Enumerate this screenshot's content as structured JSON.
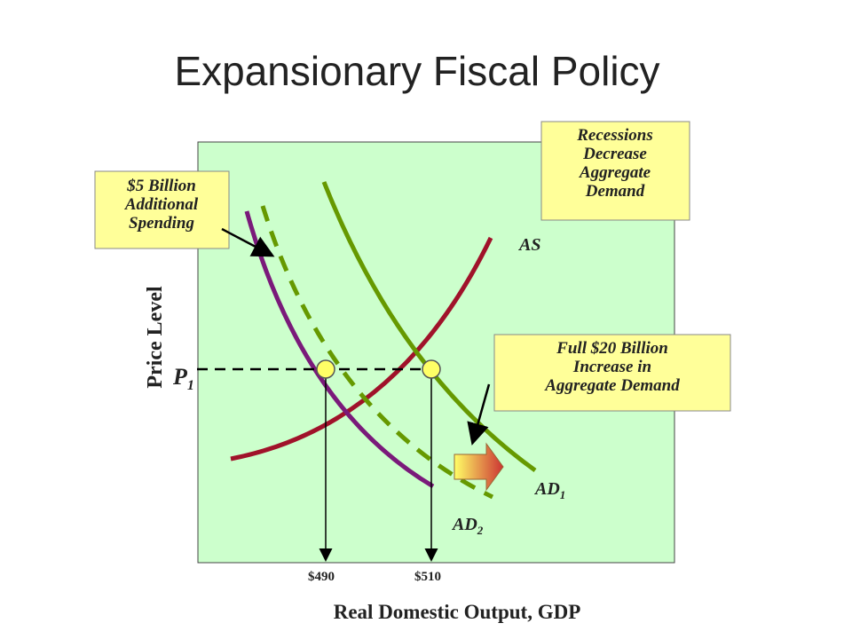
{
  "title": "Expansionary Fiscal Policy",
  "axes": {
    "y_label": "Price Level",
    "x_label": "Real Domestic Output, GDP"
  },
  "labels": {
    "p1": {
      "text": "P",
      "sub": "1"
    },
    "as": "AS",
    "ad1": {
      "text": "AD",
      "sub": "1"
    },
    "ad2": {
      "text": "AD",
      "sub": "2"
    },
    "q1": "$490",
    "q2": "$510"
  },
  "notes": [
    {
      "lines": [
        "$5 Billion",
        "Additional",
        "Spending"
      ]
    },
    {
      "lines": [
        "Recessions",
        "Decrease",
        "Aggregate",
        "Demand"
      ]
    },
    {
      "lines": [
        "Full $20 Billion",
        "Increase in",
        "Aggregate Demand"
      ]
    }
  ]
}
